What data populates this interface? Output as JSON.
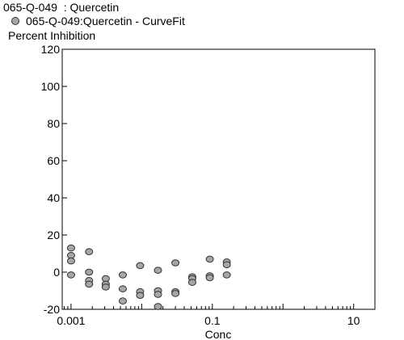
{
  "header": {
    "title": "065-Q-049  : Quercetin",
    "legend_label": "065-Q-049:Quercetin - CurveFit",
    "ylabel": "Percent Inhibition"
  },
  "chart_data": {
    "type": "scatter",
    "title": "065-Q-049  : Quercetin",
    "xlabel": "Conc",
    "ylabel": "Percent Inhibition",
    "xscale": "log",
    "xlim": [
      0.00075,
      20
    ],
    "ylim": [
      -20,
      120
    ],
    "xticks": [
      {
        "value": 0.001,
        "label": "0.001"
      },
      {
        "value": 0.1,
        "label": "0.1"
      },
      {
        "value": 10,
        "label": "10"
      }
    ],
    "yticks": [
      -20,
      0,
      20,
      40,
      60,
      80,
      100,
      120
    ],
    "grid": false,
    "legend": "top-left",
    "marker_color": "#a6a6a6",
    "series": [
      {
        "name": "065-Q-049:Quercetin - CurveFit",
        "points": [
          {
            "x": 0.001,
            "y": 13
          },
          {
            "x": 0.001,
            "y": 9
          },
          {
            "x": 0.001,
            "y": 6
          },
          {
            "x": 0.001,
            "y": -1.5
          },
          {
            "x": 0.0018,
            "y": 11
          },
          {
            "x": 0.0018,
            "y": 0
          },
          {
            "x": 0.0018,
            "y": -4.5
          },
          {
            "x": 0.0018,
            "y": -6.5
          },
          {
            "x": 0.0031,
            "y": -3.5
          },
          {
            "x": 0.0031,
            "y": -6.5
          },
          {
            "x": 0.0031,
            "y": -8
          },
          {
            "x": 0.0054,
            "y": -1.5
          },
          {
            "x": 0.0054,
            "y": -9
          },
          {
            "x": 0.0054,
            "y": -15.5
          },
          {
            "x": 0.0095,
            "y": 3.5
          },
          {
            "x": 0.0095,
            "y": -10.5
          },
          {
            "x": 0.0095,
            "y": -12.5
          },
          {
            "x": 0.017,
            "y": 1
          },
          {
            "x": 0.017,
            "y": -10
          },
          {
            "x": 0.017,
            "y": -12
          },
          {
            "x": 0.017,
            "y": -18.5
          },
          {
            "x": 0.03,
            "y": 5
          },
          {
            "x": 0.03,
            "y": -10.5
          },
          {
            "x": 0.03,
            "y": -11.5
          },
          {
            "x": 0.052,
            "y": -2.5
          },
          {
            "x": 0.052,
            "y": -3.5
          },
          {
            "x": 0.052,
            "y": -5.5
          },
          {
            "x": 0.092,
            "y": 7
          },
          {
            "x": 0.092,
            "y": -2
          },
          {
            "x": 0.092,
            "y": -3
          },
          {
            "x": 0.16,
            "y": 5.5
          },
          {
            "x": 0.16,
            "y": 4
          },
          {
            "x": 0.16,
            "y": -1.5
          }
        ]
      }
    ]
  }
}
